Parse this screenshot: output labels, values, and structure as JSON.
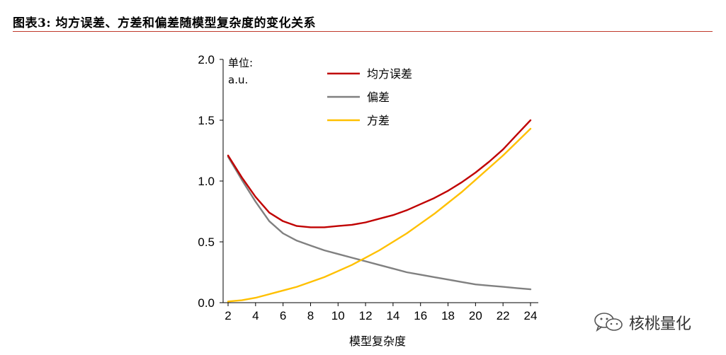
{
  "header": {
    "title": "图表3:   均方误差、方差和偏差随模型复杂度的变化关系",
    "rule_color": "#c0392b"
  },
  "watermark": {
    "text": "核桃量化",
    "icon": "wechat-chat-bubbles-icon"
  },
  "chart_data": {
    "type": "line",
    "title": "",
    "unit_label": "单位:",
    "unit_value": "a.u.",
    "xlabel": "模型复杂度",
    "ylabel": "",
    "xlim": [
      2,
      24
    ],
    "ylim": [
      0,
      2.0
    ],
    "x_ticks": [
      2,
      4,
      6,
      8,
      10,
      12,
      14,
      16,
      18,
      20,
      22,
      24
    ],
    "y_ticks": [
      "0.0",
      "0.5",
      "1.0",
      "1.5",
      "2.0"
    ],
    "grid": false,
    "legend_position": "top-center",
    "x": [
      2,
      3,
      4,
      5,
      6,
      7,
      8,
      9,
      10,
      11,
      12,
      13,
      14,
      15,
      16,
      17,
      18,
      19,
      20,
      21,
      22,
      23,
      24
    ],
    "series": [
      {
        "name": "均方误差",
        "color": "#c00000",
        "values": [
          1.21,
          1.03,
          0.87,
          0.74,
          0.67,
          0.63,
          0.62,
          0.62,
          0.63,
          0.64,
          0.66,
          0.69,
          0.72,
          0.76,
          0.81,
          0.86,
          0.92,
          0.99,
          1.07,
          1.16,
          1.26,
          1.38,
          1.5
        ]
      },
      {
        "name": "偏差",
        "color": "#808080",
        "values": [
          1.2,
          1.01,
          0.83,
          0.67,
          0.57,
          0.51,
          0.47,
          0.43,
          0.4,
          0.37,
          0.34,
          0.31,
          0.28,
          0.25,
          0.23,
          0.21,
          0.19,
          0.17,
          0.15,
          0.14,
          0.13,
          0.12,
          0.11
        ]
      },
      {
        "name": "方差",
        "color": "#ffc000",
        "values": [
          0.01,
          0.02,
          0.04,
          0.07,
          0.1,
          0.13,
          0.17,
          0.21,
          0.26,
          0.31,
          0.37,
          0.43,
          0.5,
          0.57,
          0.65,
          0.73,
          0.82,
          0.91,
          1.01,
          1.11,
          1.21,
          1.32,
          1.43
        ]
      }
    ]
  }
}
